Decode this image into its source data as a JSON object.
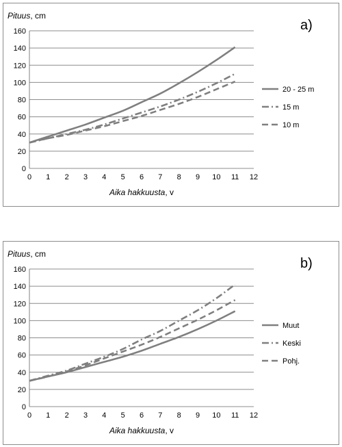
{
  "chart_data": [
    {
      "type": "line",
      "panel_label": "a)",
      "ylabel_italic": "Pituus",
      "ylabel_unit": ", cm",
      "xlabel_italic": "Aika hakkuusta",
      "xlabel_unit": ", v",
      "xlim": [
        0,
        12
      ],
      "ylim": [
        0,
        160
      ],
      "x_ticks": [
        0,
        1,
        2,
        3,
        4,
        5,
        6,
        7,
        8,
        9,
        10,
        11,
        12
      ],
      "y_ticks": [
        0,
        20,
        40,
        60,
        80,
        100,
        120,
        140,
        160
      ],
      "grid": "horizontal",
      "legend_position": "right",
      "x": [
        0,
        1,
        2,
        3,
        4,
        5,
        6,
        7,
        8,
        9,
        10,
        11
      ],
      "series": [
        {
          "name": "20 - 25 m",
          "style": "solid",
          "values": [
            30,
            37,
            44,
            51,
            59,
            67,
            77,
            87,
            99,
            112,
            126,
            141
          ]
        },
        {
          "name": "15 m",
          "style": "dashdot",
          "values": [
            30,
            35,
            40,
            45,
            51,
            58,
            65,
            72,
            80,
            89,
            99,
            110
          ]
        },
        {
          "name": "10 m",
          "style": "dashed",
          "values": [
            30,
            35,
            39,
            44,
            49,
            55,
            61,
            68,
            75,
            83,
            92,
            101
          ]
        }
      ]
    },
    {
      "type": "line",
      "panel_label": "b)",
      "ylabel_italic": "Pituus",
      "ylabel_unit": ", cm",
      "xlabel_italic": "Aika hakkuusta",
      "xlabel_unit": ", v",
      "xlim": [
        0,
        12
      ],
      "ylim": [
        0,
        160
      ],
      "x_ticks": [
        0,
        1,
        2,
        3,
        4,
        5,
        6,
        7,
        8,
        9,
        10,
        11,
        12
      ],
      "y_ticks": [
        0,
        20,
        40,
        60,
        80,
        100,
        120,
        140,
        160
      ],
      "grid": "horizontal",
      "legend_position": "right",
      "x": [
        0,
        1,
        2,
        3,
        4,
        5,
        6,
        7,
        8,
        9,
        10,
        11
      ],
      "series": [
        {
          "name": "Muut",
          "style": "solid",
          "values": [
            30,
            35,
            40,
            46,
            52,
            58,
            65,
            73,
            81,
            90,
            100,
            111
          ]
        },
        {
          "name": "Keski",
          "style": "dashdot",
          "values": [
            30,
            36,
            42,
            50,
            58,
            67,
            78,
            88,
            100,
            112,
            126,
            142
          ]
        },
        {
          "name": "Pohj.",
          "style": "dashed",
          "values": [
            30,
            35,
            41,
            48,
            56,
            64,
            72,
            81,
            91,
            101,
            112,
            124
          ]
        }
      ]
    }
  ],
  "colors": {
    "line": "#7f7f7f",
    "grid": "#8c8c8c",
    "axis": "#808080"
  }
}
